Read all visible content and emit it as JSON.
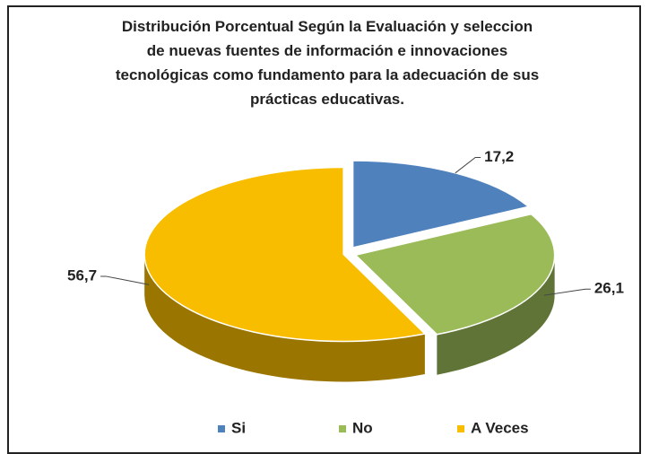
{
  "chart_data": {
    "type": "pie3d",
    "title": "Distribución Porcentual Según la Evaluación y seleccion de nuevas fuentes de información e innovaciones tecnológicas como fundamento para la adecuación de sus prácticas educativas.",
    "categories": [
      "Si",
      "No",
      "A Veces"
    ],
    "values": [
      17.2,
      26.1,
      56.7
    ],
    "value_labels": [
      "17,2",
      "26,1",
      "56,7"
    ],
    "colors": [
      "#4f81bd",
      "#9bbb59",
      "#f9bd00"
    ],
    "legend": "bottom"
  }
}
